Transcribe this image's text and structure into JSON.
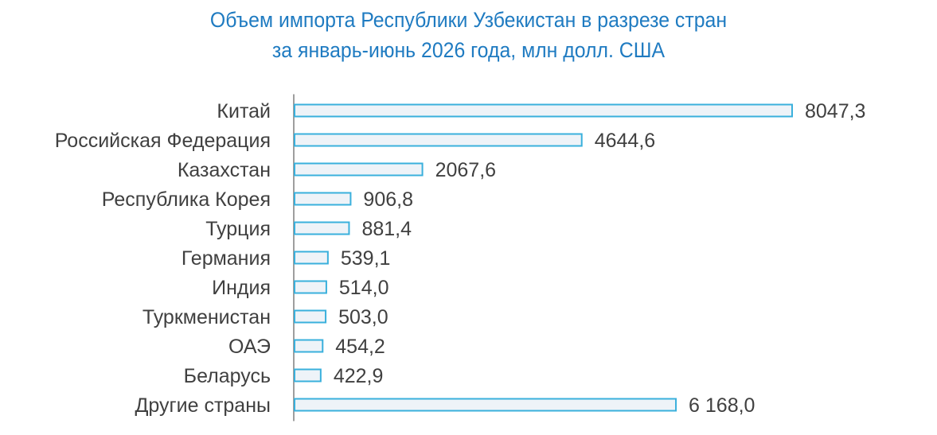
{
  "title": {
    "line1": "Объем импорта Республики Узбекистан в разрезе стран",
    "line2": "за январь-июнь 2026 года, млн долл. США"
  },
  "colors": {
    "title": "#1f7bc1",
    "bar_fill": "#eef3f8",
    "bar_stroke": "#3ab0dc",
    "text": "#404040"
  },
  "chart_data": {
    "type": "bar",
    "orientation": "horizontal",
    "title": "Объем импорта Республики Узбекистан в разрезе стран за январь-июнь 2026 года, млн долл. США",
    "categories": [
      "Китай",
      "Российская Федерация",
      "Казахстан",
      "Республика Корея",
      "Турция",
      "Германия",
      "Индия",
      "Туркменистан",
      "ОАЭ",
      "Беларусь",
      "Другие страны"
    ],
    "values": [
      8047.3,
      4644.6,
      2067.6,
      906.8,
      881.4,
      539.1,
      514.0,
      503.0,
      454.2,
      422.9,
      6168.0
    ],
    "value_labels": [
      "8047,3",
      "4644,6",
      "2067,6",
      "906,8",
      "881,4",
      "539,1",
      "514,0",
      "503,0",
      "454,2",
      "422,9",
      "6 168,0"
    ],
    "xlim": [
      0,
      8047.3
    ],
    "grid": false,
    "legend": "none"
  }
}
